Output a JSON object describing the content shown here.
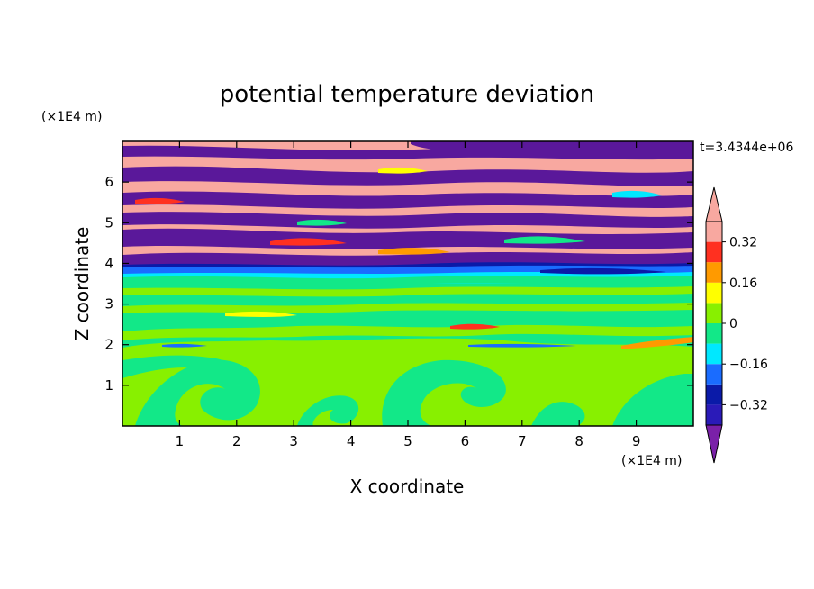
{
  "chart_data": {
    "type": "heatmap",
    "title": "potential temperature deviation",
    "xlabel": "X coordinate",
    "ylabel": "Z coordinate",
    "x_unit": "(×1E4 m)",
    "y_unit": "(×1E4 m)",
    "time_label": "t=3.4344e+06",
    "xlim": [
      0,
      10
    ],
    "ylim": [
      0,
      7
    ],
    "x_ticks": [
      1,
      2,
      3,
      4,
      5,
      6,
      7,
      8,
      9
    ],
    "y_ticks": [
      1,
      2,
      3,
      4,
      5,
      6
    ],
    "grid": false,
    "colorbar": {
      "placement": "right",
      "levels": [
        -0.4,
        -0.32,
        -0.24,
        -0.16,
        -0.08,
        0,
        0.08,
        0.16,
        0.24,
        0.32,
        0.4
      ],
      "colors": [
        "#5a189a",
        "#2a1ab8",
        "#0a1aa8",
        "#1a6cff",
        "#00e8ff",
        "#12e888",
        "#88f000",
        "#ffff00",
        "#ff9a00",
        "#ff3020",
        "#f8a8a0"
      ],
      "under_color": "#7a20a8",
      "over_color": "#f8a8a0",
      "tick_labels": [
        "−0.32",
        "−0.16",
        "0",
        "0.16",
        "0.32"
      ],
      "tick_values": [
        -0.32,
        -0.16,
        0,
        0.16,
        0.32
      ]
    },
    "layers": [
      {
        "z_range": [
          0,
          1.8
        ],
        "dominant_value": 0.04,
        "note": "green field with cyan patches"
      },
      {
        "z_range": [
          1.8,
          3.5
        ],
        "dominant_value": 0.0,
        "note": "cyan-green with streaks"
      },
      {
        "z_range": [
          3.5,
          3.9
        ],
        "dominant_value": -0.12,
        "note": "cyan/blue band"
      },
      {
        "z_range": [
          3.9,
          7.0
        ],
        "dominant_value": 0.36,
        "note": "alternating pink and purple layers"
      }
    ]
  }
}
